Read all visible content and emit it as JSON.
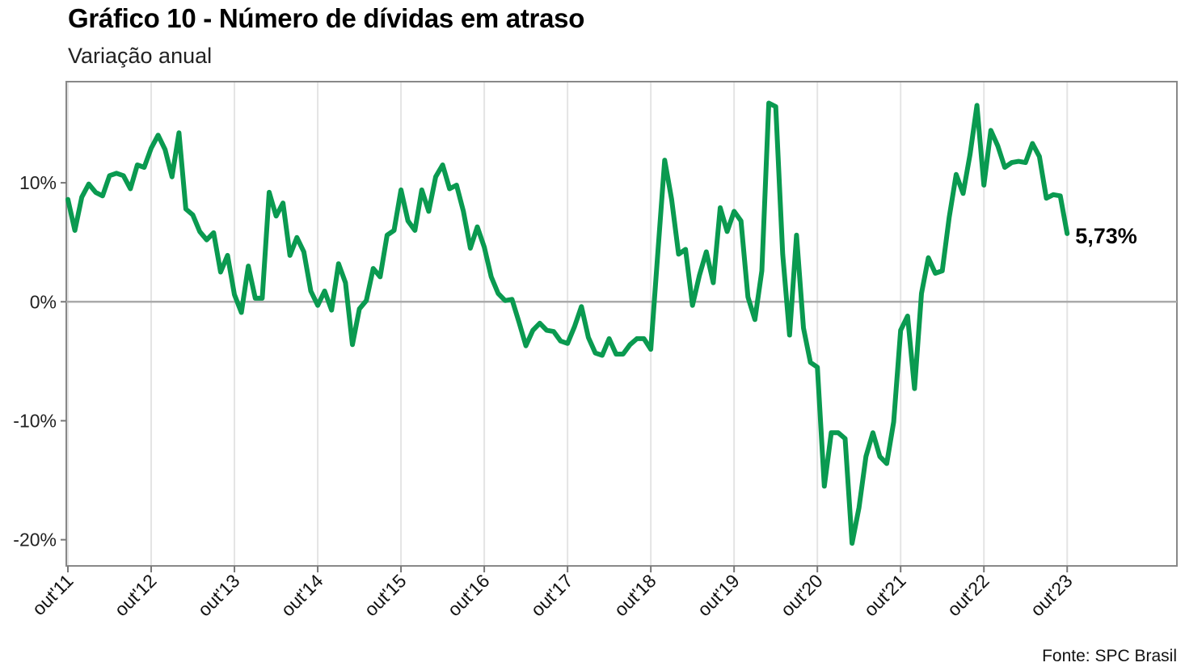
{
  "header": {
    "title": "Gráfico 10 - Número de dívidas em atraso",
    "subtitle": "Variação anual"
  },
  "footer": {
    "source": "Fonte: SPC Brasil"
  },
  "chart_data": {
    "type": "line",
    "title": "Gráfico 10 - Número de dívidas em atraso",
    "subtitle": "Variação anual",
    "xlabel": "",
    "ylabel": "",
    "ylim": [
      -22.2,
      18.5
    ],
    "y_ticks": [
      -20,
      -10,
      0,
      10
    ],
    "y_tick_labels": [
      "-20%",
      "-10%",
      "0%",
      "10%"
    ],
    "x_tick_labels": [
      "out'11",
      "out'12",
      "out'13",
      "out'14",
      "out'15",
      "out'16",
      "out'17",
      "out'18",
      "out'19",
      "out'20",
      "out'21",
      "out'22",
      "out'23"
    ],
    "x_range_months": [
      0,
      156
    ],
    "grid": true,
    "reference_line": 0,
    "line_color": "#0a9a50",
    "end_label": "5,73%",
    "series": [
      {
        "values": [
          8.6,
          6.0,
          8.8,
          9.9,
          9.2,
          8.9,
          10.6,
          10.8,
          10.6,
          9.5,
          11.5,
          11.3,
          12.9,
          14.0,
          12.8,
          10.5,
          14.2,
          7.8,
          7.3,
          5.9,
          5.2,
          5.8,
          2.5,
          3.9,
          0.6,
          -0.9,
          3.0,
          0.3,
          0.3,
          9.2,
          7.2,
          8.3,
          3.9,
          5.4,
          4.2,
          0.9,
          -0.3,
          0.9,
          -0.7,
          3.2,
          1.6,
          -3.6,
          -0.6,
          0.1,
          2.8,
          2.1,
          5.6,
          6.0,
          9.4,
          6.8,
          6.0,
          9.4,
          7.6,
          10.5,
          11.5,
          9.5,
          9.8,
          7.6,
          4.5,
          6.3,
          4.6,
          2.1,
          0.7,
          0.1,
          0.2,
          -1.7,
          -3.7,
          -2.4,
          -1.8,
          -2.4,
          -2.5,
          -3.3,
          -3.5,
          -2.1,
          -0.4,
          -3.0,
          -4.3,
          -4.5,
          -3.1,
          -4.4,
          -4.4,
          -3.6,
          -3.1,
          -3.1,
          -4.0,
          4.0,
          11.9,
          8.6,
          4.0,
          4.4,
          -0.3,
          2.2,
          4.2,
          1.6,
          7.9,
          5.9,
          7.6,
          6.8,
          0.4,
          -1.5,
          2.6,
          16.7,
          16.4,
          4.0,
          -2.8,
          5.6,
          -2.2,
          -5.1,
          -5.5,
          -15.5,
          -11.0,
          -11.0,
          -11.5,
          -20.3,
          -17.3,
          -13.0,
          -11.0,
          -13.0,
          -13.6,
          -10.1,
          -2.4,
          -1.2,
          -7.3,
          0.7,
          3.7,
          2.4,
          2.6,
          7.1,
          10.7,
          9.1,
          12.4,
          16.5,
          9.8,
          14.4,
          13.1,
          11.3,
          11.7,
          11.8,
          11.7,
          13.3,
          12.2,
          8.7,
          9.0,
          8.9,
          5.73
        ]
      }
    ]
  }
}
